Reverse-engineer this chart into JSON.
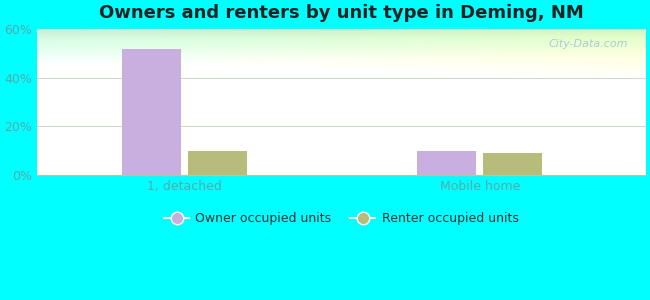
{
  "title": "Owners and renters by unit type in Deming, NM",
  "categories": [
    "1, detached",
    "Mobile home"
  ],
  "owner_values": [
    52,
    10
  ],
  "renter_values": [
    10,
    9
  ],
  "owner_color": "#c9aee0",
  "renter_color": "#b8bc7a",
  "bar_width": 0.32,
  "ylim": [
    0,
    60
  ],
  "yticks": [
    0,
    20,
    40,
    60
  ],
  "ytick_labels": [
    "0%",
    "20%",
    "40%",
    "60%"
  ],
  "legend_owner": "Owner occupied units",
  "legend_renter": "Renter occupied units",
  "bg_grad_topleft": "#c8eeda",
  "bg_grad_topright": "#e8f4ee",
  "bg_grad_bottom": "#e8eeca",
  "watermark": "City-Data.com",
  "title_fontsize": 13,
  "tick_fontsize": 9,
  "legend_fontsize": 9,
  "tick_color": "#55aaaa",
  "label_color": "#55aaaa",
  "grid_color": "#ccddcc",
  "fig_bg": "#00ffff"
}
